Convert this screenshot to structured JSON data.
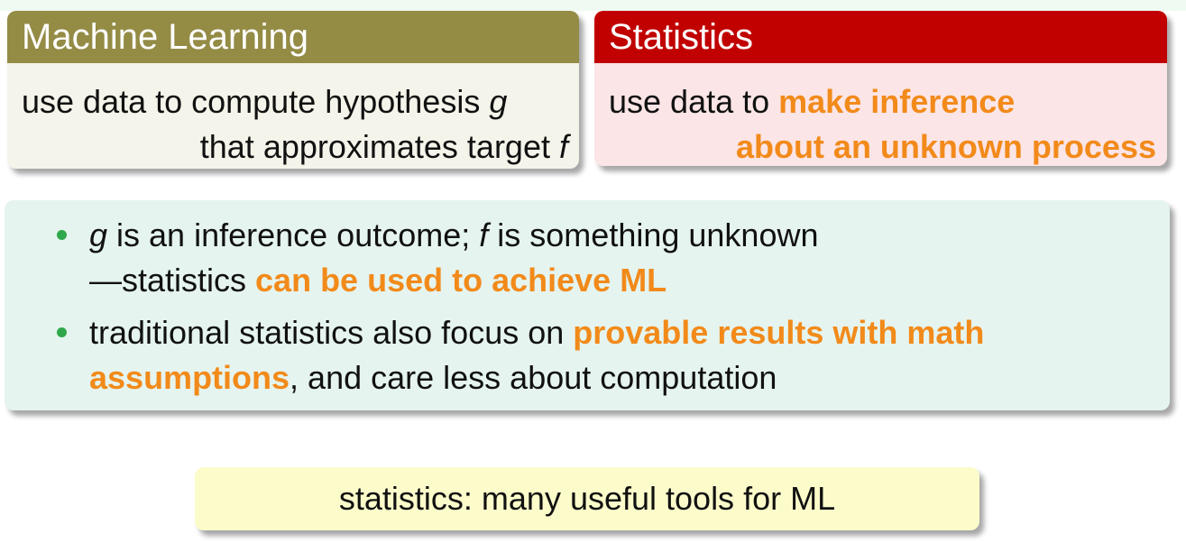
{
  "ml_block": {
    "title": "Machine Learning",
    "line1_text": "use data to compute hypothesis ",
    "line1_var": "g",
    "line2_text": "that approximates target ",
    "line2_var": "f"
  },
  "stat_block": {
    "title": "Statistics",
    "line1_text": "use data to ",
    "line1_highlight": "make inference",
    "line2_highlight": "about an unknown process"
  },
  "bullets": [
    {
      "var1": "g",
      "text1": " is an inference outcome; ",
      "var2": "f",
      "text2": " is something unknown",
      "line2_text": "—statistics ",
      "line2_highlight": "can be used to achieve ML"
    },
    {
      "text1": "traditional statistics also focus on ",
      "highlight": "provable results with math assumptions",
      "text2": ", and care less about computation"
    }
  ],
  "conclusion": "statistics: many useful tools for ML",
  "colors": {
    "ml_header": "#948b45",
    "stat_header": "#c10000",
    "highlight": "#f28a1a",
    "bullet": "#2ea84a"
  }
}
